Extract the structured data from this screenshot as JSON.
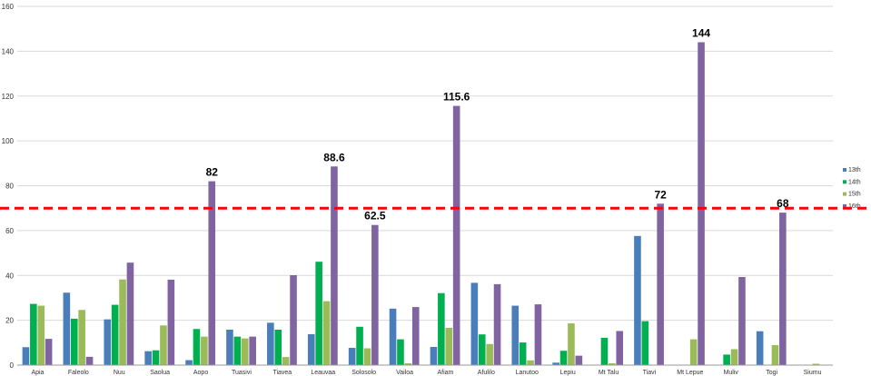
{
  "chart_data": {
    "type": "bar",
    "categories": [
      "Apia",
      "Faleolo",
      "Nuu",
      "Saolua",
      "Aopo",
      "Tuasivi",
      "Tiavea",
      "Leauvaa",
      "Solosolo",
      "Vailoa",
      "Afiam",
      "Afulilo",
      "Lanutoo",
      "Lepiu",
      "Mt Talu",
      "Tiavi",
      "Mt Lepue",
      "Muliv",
      "Togi",
      "Siumu"
    ],
    "series": [
      {
        "name": "13th",
        "color": "#4a7ebb",
        "values": [
          8,
          32.3,
          20.4,
          6.2,
          2.2,
          15.8,
          18.9,
          13.8,
          7.7,
          25.2,
          8.1,
          36.7,
          26.5,
          1.1,
          0,
          57.6,
          0,
          0,
          15.1,
          0
        ]
      },
      {
        "name": "14th",
        "color": "#00b050",
        "values": [
          27.3,
          20.7,
          26.9,
          6.6,
          16.1,
          12.7,
          15.8,
          46.1,
          17.1,
          11.5,
          32.1,
          13.7,
          10.1,
          6.4,
          12.2,
          19.6,
          0,
          4.7,
          0,
          0
        ]
      },
      {
        "name": "15th",
        "color": "#9bbb59",
        "values": [
          26.5,
          24.6,
          38.2,
          17.7,
          12.7,
          11.9,
          3.6,
          28.5,
          7.5,
          0.8,
          16.6,
          9.4,
          2.1,
          18.6,
          0.8,
          0,
          11.5,
          7.1,
          8.9,
          0.6
        ]
      },
      {
        "name": "16th",
        "color": "#8064a2",
        "values": [
          11.7,
          3.7,
          45.7,
          38.1,
          82,
          12.7,
          40.1,
          88.6,
          62.5,
          25.9,
          115.6,
          36.1,
          27.1,
          4.2,
          15.2,
          72,
          144,
          39.3,
          68,
          0
        ]
      }
    ],
    "callouts": [
      {
        "category": "Aopo",
        "text": "82"
      },
      {
        "category": "Leauvaa",
        "text": "88.6"
      },
      {
        "category": "Solosolo",
        "text": "62.5"
      },
      {
        "category": "Afiam",
        "text": "115.6"
      },
      {
        "category": "Tiavi",
        "text": "72"
      },
      {
        "category": "Mt Lepue",
        "text": "144"
      },
      {
        "category": "Togi",
        "text": "68"
      }
    ],
    "ylim": [
      0,
      160
    ],
    "yticks": [
      "0",
      "20",
      "40",
      "60",
      "80",
      "100",
      "120",
      "140",
      "160"
    ],
    "threshold": {
      "value": 70,
      "color": "#ff0000",
      "style": "dashed"
    },
    "grid": true,
    "legend": "right"
  }
}
